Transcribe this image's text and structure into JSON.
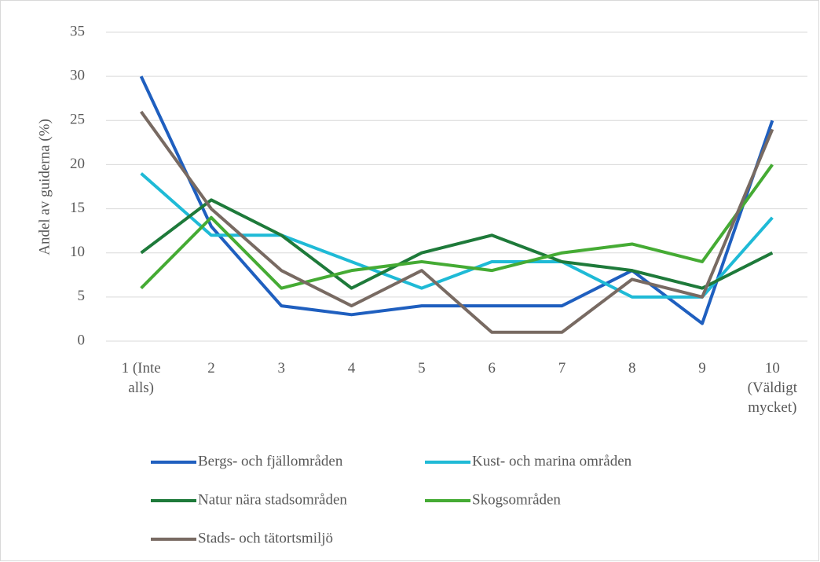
{
  "chart_data": {
    "type": "line",
    "y_label": "Andel av guiderna (%)",
    "categories": [
      "1 (Inte alls)",
      "2",
      "3",
      "4",
      "5",
      "6",
      "7",
      "8",
      "9",
      "10 (Väldigt mycket)"
    ],
    "series": [
      {
        "name": "Bergs- och fjällområden",
        "color": "#1f5fbf",
        "values": [
          30,
          13,
          4,
          3,
          4,
          4,
          4,
          8,
          2,
          25
        ]
      },
      {
        "name": "Kust- och marina områden",
        "color": "#1fbad6",
        "values": [
          19,
          12,
          12,
          9,
          6,
          9,
          9,
          5,
          5,
          14
        ]
      },
      {
        "name": "Natur nära stadsområden",
        "color": "#1e7a3a",
        "values": [
          10,
          16,
          12,
          6,
          10,
          12,
          9,
          8,
          6,
          10
        ]
      },
      {
        "name": "Skogsområden",
        "color": "#45ab34",
        "values": [
          6,
          14,
          6,
          8,
          9,
          8,
          10,
          11,
          9,
          20
        ]
      },
      {
        "name": "Stads- och tätortsmiljö",
        "color": "#786a62",
        "values": [
          26,
          15,
          8,
          4,
          8,
          1,
          1,
          7,
          5,
          24
        ]
      }
    ],
    "ylim": [
      0,
      35
    ],
    "yticks": [
      0,
      5,
      10,
      15,
      20,
      25,
      30,
      35
    ],
    "grid": true,
    "legend": "bottom"
  }
}
